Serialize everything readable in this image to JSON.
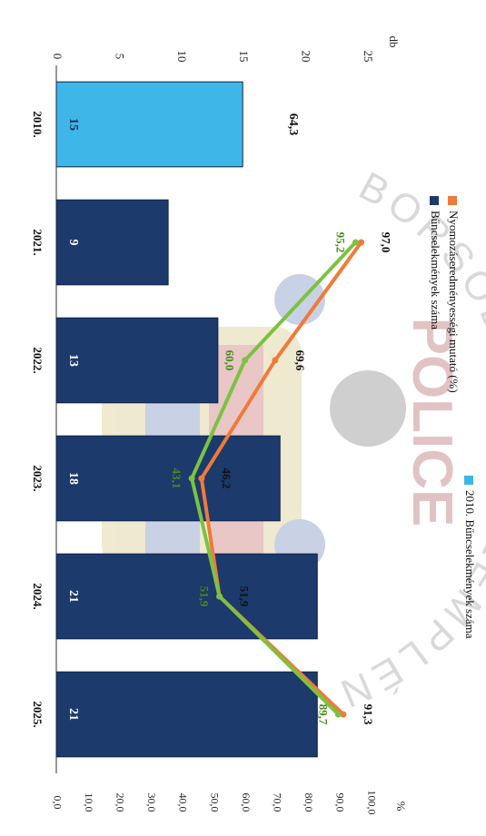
{
  "chart_data": {
    "type": "bar",
    "orientation": "rotated-90-clockwise",
    "categories": [
      "2010.",
      "2021.",
      "2022.",
      "2023.",
      "2024.",
      "2025."
    ],
    "y_left_label": "db",
    "y_left_ticks": [
      "0",
      "5",
      "10",
      "15",
      "20",
      "25"
    ],
    "y_left_range": [
      0,
      25
    ],
    "y_right_label": "%",
    "y_right_ticks": [
      "0,0",
      "10,0",
      "20,0",
      "30,0",
      "40,0",
      "50,0",
      "60,0",
      "70,0",
      "80,0",
      "90,0",
      "100,0"
    ],
    "y_right_range": [
      0,
      100
    ],
    "series": [
      {
        "name": "2010. Bűncselekmények száma",
        "type": "bar",
        "axis": "left",
        "color": "#3fb6e8",
        "values": [
          15,
          null,
          null,
          null,
          null,
          null
        ],
        "labels": [
          "15",
          "",
          "",
          "",
          "",
          ""
        ]
      },
      {
        "name": "Bűncselekmények száma",
        "type": "bar",
        "axis": "left",
        "color": "#1c3a6b",
        "values": [
          null,
          9,
          13,
          18,
          21,
          21
        ],
        "labels": [
          "",
          "9",
          "13",
          "18",
          "21",
          "21"
        ]
      },
      {
        "name": "Nyomozáseredményességi mutató (%)",
        "type": "line",
        "axis": "right",
        "color": "#f07a3a",
        "values": [
          null,
          97.0,
          69.6,
          46.2,
          51.9,
          91.3
        ],
        "labels": [
          "",
          "97,0",
          "69,6",
          "46,2",
          "51,9",
          "91,3"
        ]
      },
      {
        "name": "",
        "type": "line",
        "axis": "right",
        "color": "#7cc242",
        "values": [
          null,
          95.2,
          60.0,
          43.1,
          51.9,
          89.7
        ],
        "labels": [
          "",
          "95,2",
          "60,0",
          "43,1",
          "51,9",
          "89,7"
        ]
      }
    ],
    "reference_label": "64,3",
    "legend": [
      "2010. Bűncselekmények száma",
      "Nyomozáseredményességi mutató (%)",
      "Bűncselekmények száma"
    ],
    "legend_position": "top",
    "watermark": {
      "arc_text": "BORSOD-ABAÚJ-ZEMPLÉN MEGYE",
      "word": "POLICE"
    },
    "grid": false
  }
}
